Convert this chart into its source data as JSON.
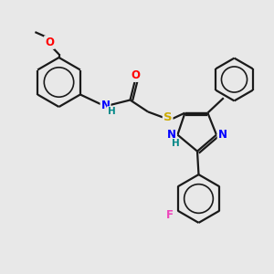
{
  "bg_color": "#e8e8e8",
  "bond_color": "#1a1a1a",
  "bond_width": 1.6,
  "atom_colors": {
    "O": "#ff0000",
    "N": "#0000ff",
    "S": "#ccaa00",
    "F": "#ee44bb",
    "C": "#1a1a1a",
    "H": "#008888"
  },
  "figsize": [
    3.0,
    3.0
  ],
  "dpi": 100
}
